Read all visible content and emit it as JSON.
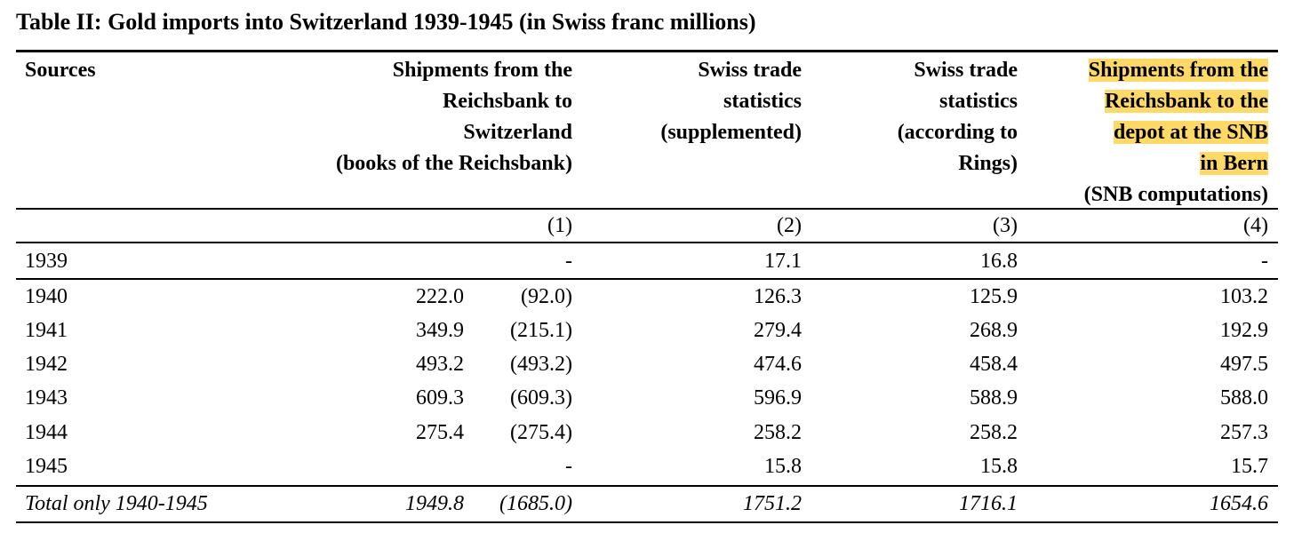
{
  "title": "Table II: Gold imports into Switzerland 1939-1945 (in Swiss franc millions)",
  "header": {
    "sources": "Sources",
    "col1": [
      "Shipments from the",
      "Reichsbank to",
      "Switzerland",
      "(books of the Reichsbank)"
    ],
    "col2": [
      "Swiss trade",
      "statistics",
      "(supplemented)"
    ],
    "col3": [
      "Swiss trade",
      "statistics",
      "(according to",
      "Rings)"
    ],
    "col4": [
      "Shipments from the",
      "Reichsbank to the",
      "depot at the SNB",
      "in Bern",
      "(SNB computations)"
    ]
  },
  "col_numbers": [
    "(1)",
    "(2)",
    "(3)",
    "(4)"
  ],
  "rows": [
    {
      "year": "1939",
      "c1a": "",
      "c1b": "-",
      "c2": "17.1",
      "c3": "16.8",
      "c4": "-"
    },
    {
      "year": "1940",
      "c1a": "222.0",
      "c1b": "(92.0)",
      "c2": "126.3",
      "c3": "125.9",
      "c4": "103.2"
    },
    {
      "year": "1941",
      "c1a": "349.9",
      "c1b": "(215.1)",
      "c2": "279.4",
      "c3": "268.9",
      "c4": "192.9"
    },
    {
      "year": "1942",
      "c1a": "493.2",
      "c1b": "(493.2)",
      "c2": "474.6",
      "c3": "458.4",
      "c4": "497.5"
    },
    {
      "year": "1943",
      "c1a": "609.3",
      "c1b": "(609.3)",
      "c2": "596.9",
      "c3": "588.9",
      "c4": "588.0"
    },
    {
      "year": "1944",
      "c1a": "275.4",
      "c1b": "(275.4)",
      "c2": "258.2",
      "c3": "258.2",
      "c4": "257.3"
    },
    {
      "year": "1945",
      "c1a": "",
      "c1b": "-",
      "c2": "15.8",
      "c3": "15.8",
      "c4": "15.7"
    }
  ],
  "total": {
    "label": "Total only 1940-1945",
    "c1a": "1949.8",
    "c1b": "(1685.0)",
    "c2": "1751.2",
    "c3": "1716.1",
    "c4": "1654.6"
  },
  "highlight_color": "#ffd966"
}
